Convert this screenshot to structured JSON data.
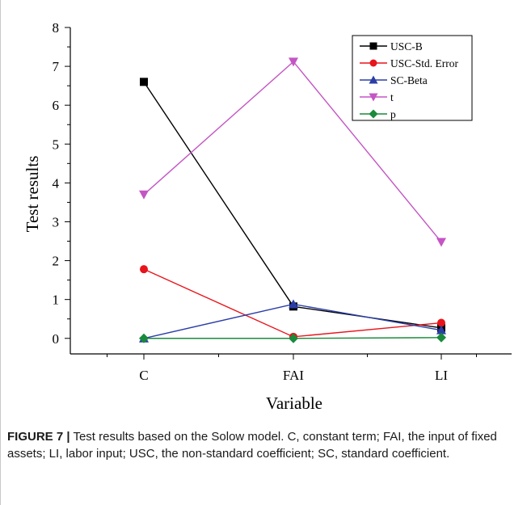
{
  "chart_data": {
    "type": "line",
    "categories": [
      "C",
      "FAI",
      "LI"
    ],
    "xlabel": "Variable",
    "ylabel": "Test results",
    "ylim": [
      -0.4,
      8
    ],
    "yticks": [
      0,
      1,
      2,
      3,
      4,
      5,
      6,
      7,
      8
    ],
    "grid": false,
    "legend_position": "top-right",
    "series": [
      {
        "name": "USC-B",
        "color": "#000000",
        "marker": "square",
        "values": [
          6.6,
          0.82,
          0.27
        ]
      },
      {
        "name": "USC-Std. Error",
        "color": "#e8141b",
        "marker": "circle",
        "values": [
          1.78,
          0.04,
          0.4
        ]
      },
      {
        "name": "SC-Beta",
        "color": "#2b3ea6",
        "marker": "triangle-up",
        "values": [
          0.0,
          0.88,
          0.21
        ]
      },
      {
        "name": "t",
        "color": "#c455c4",
        "marker": "triangle-down",
        "values": [
          3.7,
          7.12,
          2.48
        ]
      },
      {
        "name": "p",
        "color": "#1a8a3c",
        "marker": "diamond",
        "values": [
          0.0,
          0.0,
          0.02
        ]
      }
    ]
  },
  "caption": {
    "label": "FIGURE 7 |",
    "text": "Test results based on the Solow model. C, constant term; FAI, the input of fixed assets; LI, labor input; USC, the non-standard coefficient; SC, standard coefficient."
  }
}
